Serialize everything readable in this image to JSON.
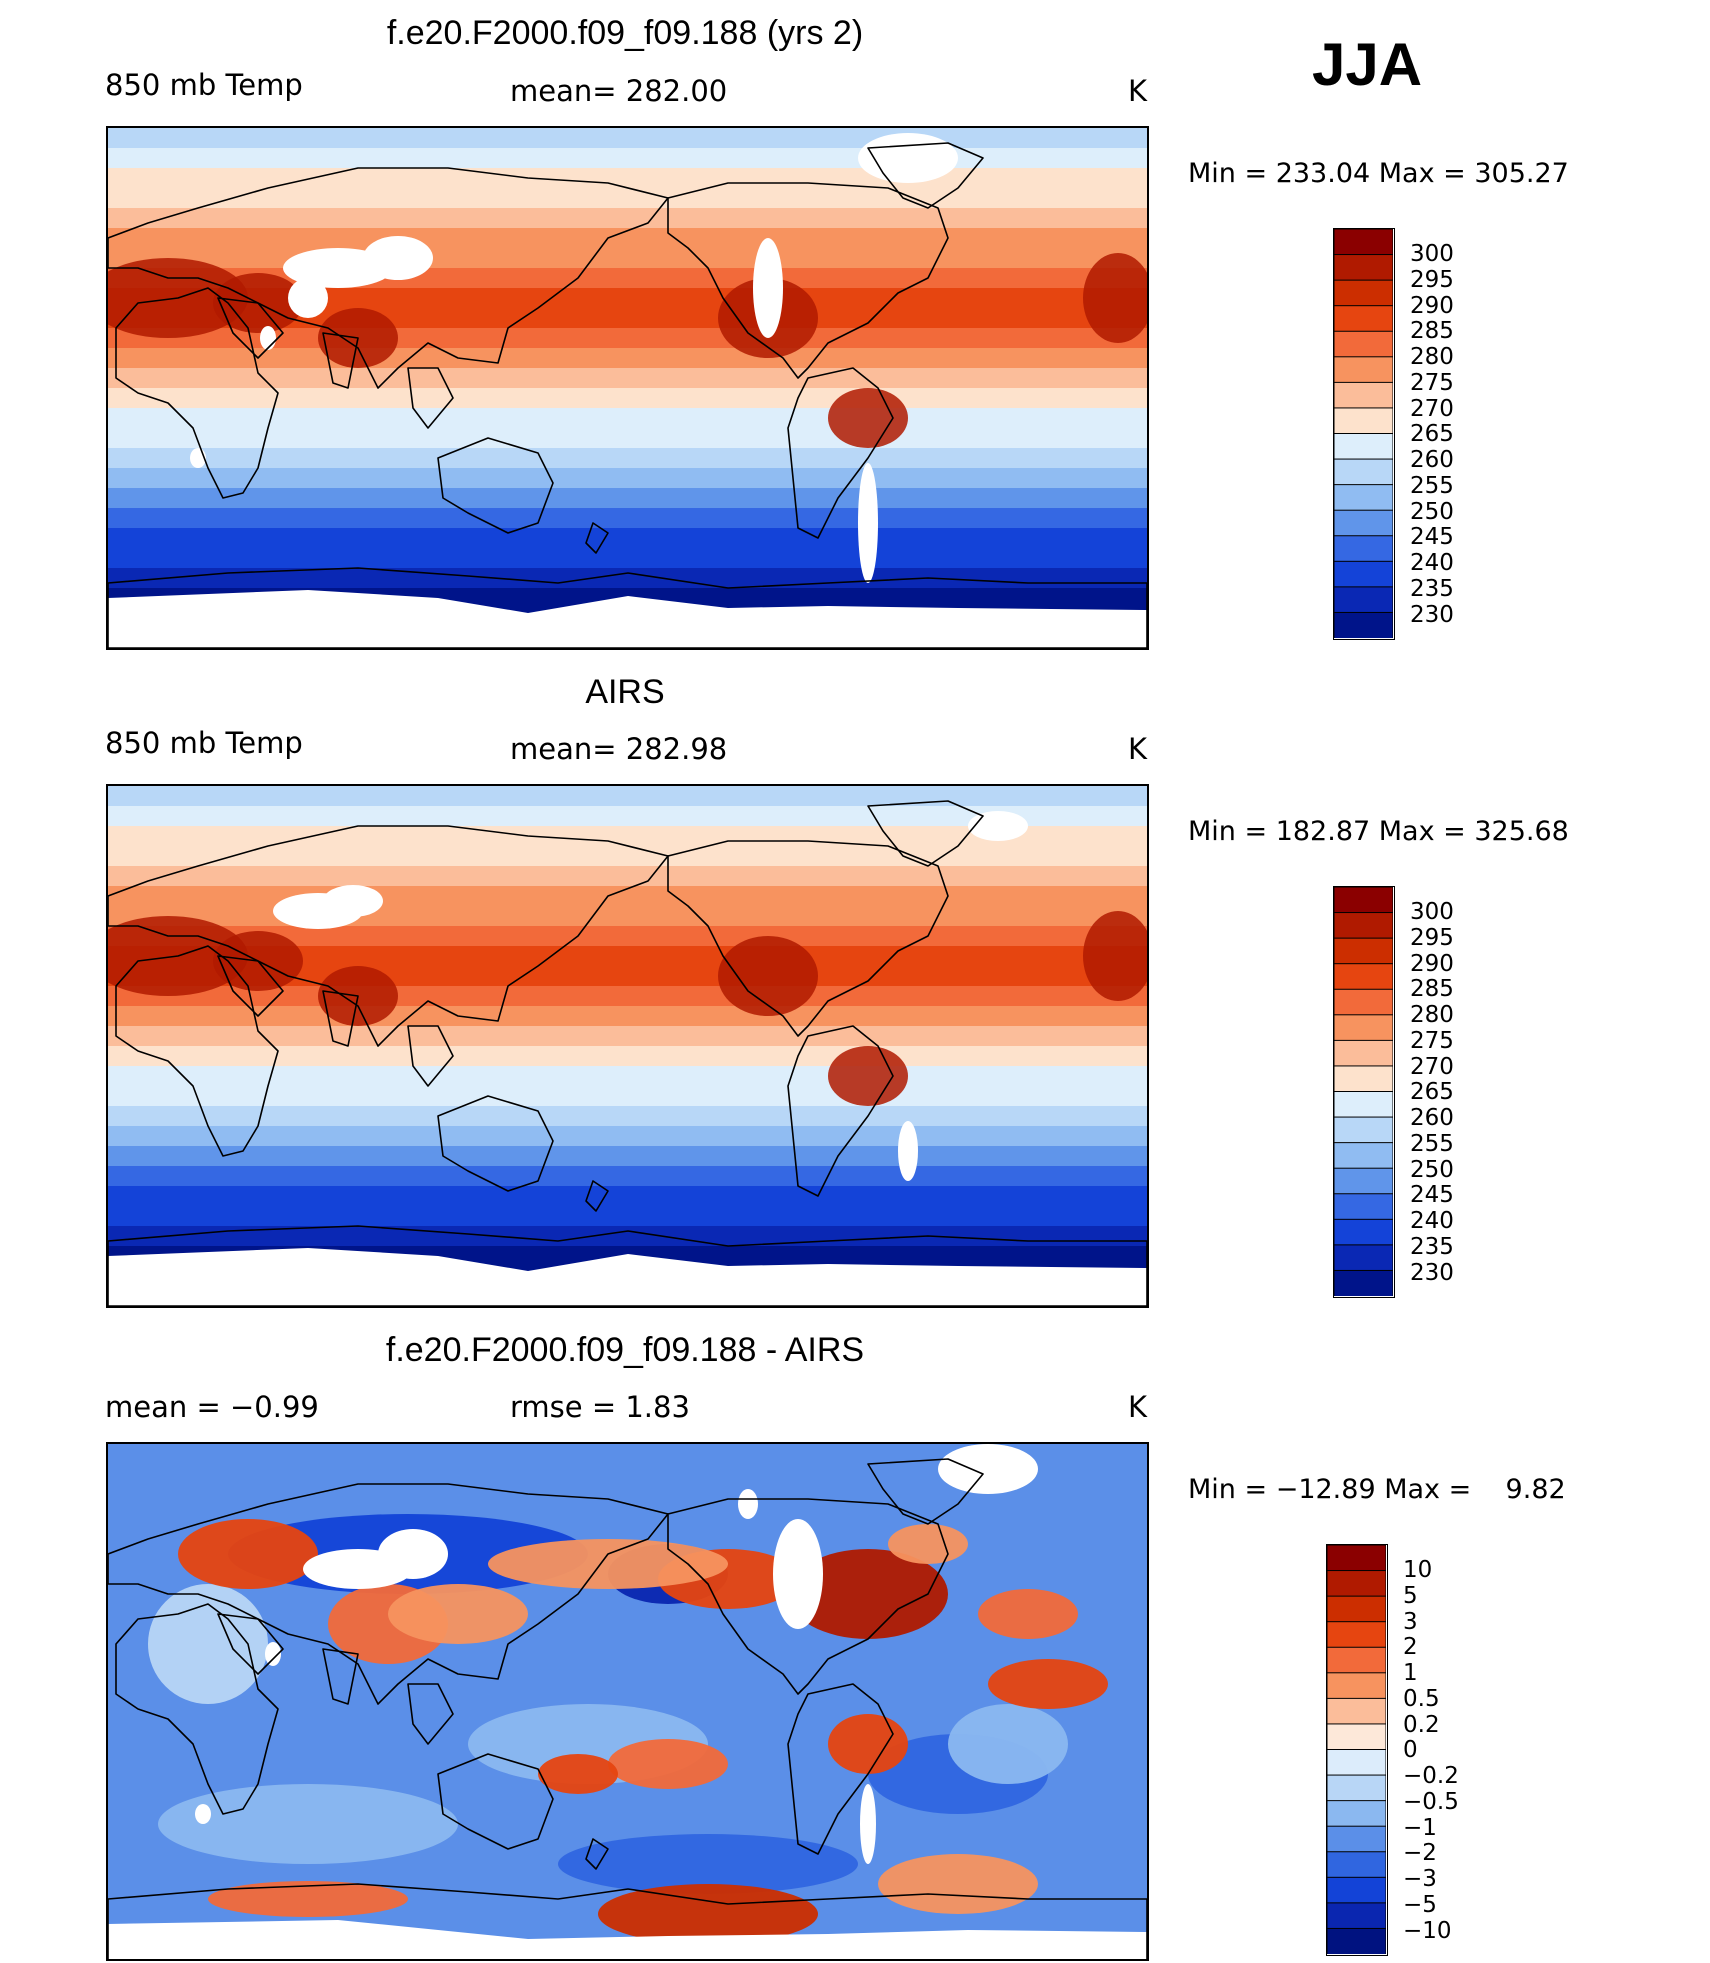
{
  "season": "JJA",
  "panels": [
    {
      "id": "model",
      "title": "f.e20.F2000.f09_f09.188 (yrs 2)",
      "left_label": "850 mb Temp",
      "center_label": "mean= 282.00",
      "units": "K",
      "minmax": "Min = 233.04 Max = 305.27",
      "colorbar_labels": [
        "300",
        "295",
        "290",
        "285",
        "280",
        "275",
        "270",
        "265",
        "260",
        "255",
        "250",
        "245",
        "240",
        "235",
        "230"
      ]
    },
    {
      "id": "obs",
      "title": "AIRS",
      "left_label": "850 mb Temp",
      "center_label": "mean= 282.98",
      "units": "K",
      "minmax": "Min = 182.87 Max = 325.68",
      "colorbar_labels": [
        "300",
        "295",
        "290",
        "285",
        "280",
        "275",
        "270",
        "265",
        "260",
        "255",
        "250",
        "245",
        "240",
        "235",
        "230"
      ]
    },
    {
      "id": "diff",
      "title": "f.e20.F2000.f09_f09.188 - AIRS",
      "left_label": "mean =   −0.99",
      "center_label": "rmse =    1.83",
      "units": "K",
      "minmax": "Min = −12.89 Max =    9.82",
      "colorbar_labels": [
        "10",
        "5",
        "3",
        "2",
        "1",
        "0.5",
        "0.2",
        "0",
        "−0.2",
        "−0.5",
        "−1",
        "−2",
        "−3",
        "−5",
        "−10"
      ]
    }
  ],
  "colors": {
    "abs": [
      "#8b0000",
      "#b01a00",
      "#cc2e00",
      "#e64510",
      "#f26a3a",
      "#f7935f",
      "#fbbd9a",
      "#fde2cc",
      "#ddeefb",
      "#b8d7f7",
      "#90bcf2",
      "#6095ea",
      "#3568e3",
      "#1443d8",
      "#0a28b4",
      "#00148a"
    ],
    "diff": [
      "#8b0000",
      "#b01a00",
      "#cc2e00",
      "#e64510",
      "#f26a3a",
      "#f7935f",
      "#fbbd9a",
      "#fde8d9",
      "#dcecfb",
      "#b8d6f6",
      "#8bb8f0",
      "#5b8fe8",
      "#3066e0",
      "#1343d7",
      "#0a26b0",
      "#001280"
    ]
  }
}
